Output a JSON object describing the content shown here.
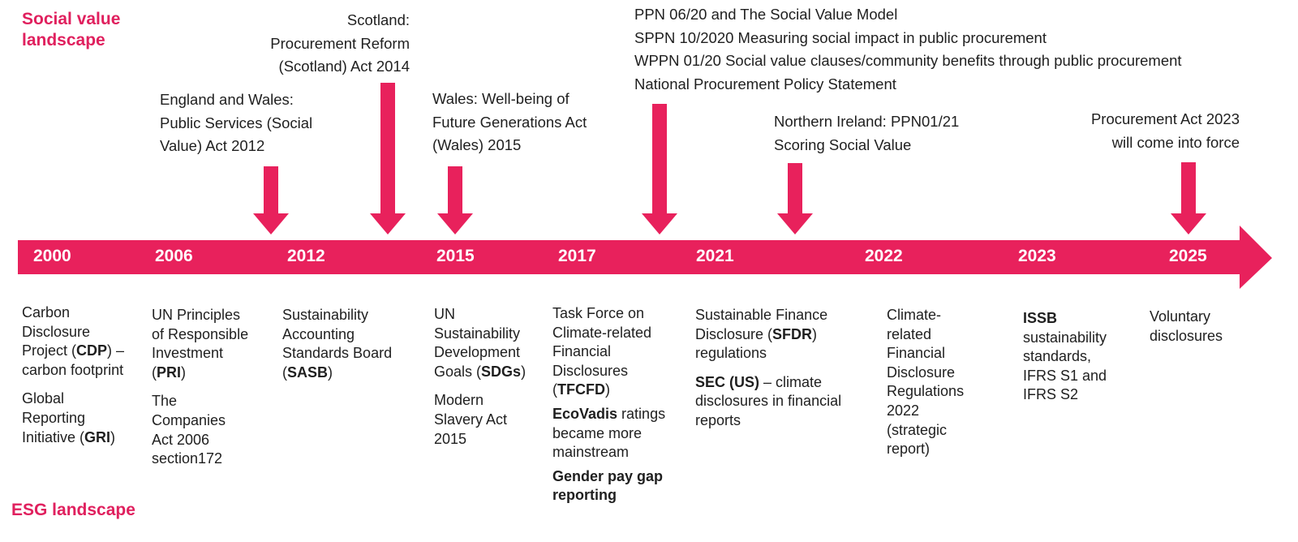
{
  "titles": {
    "social_value": [
      "Social value",
      "landscape"
    ],
    "esg": "ESG landscape"
  },
  "years": [
    "2000",
    "2006",
    "2012",
    "2015",
    "2017",
    "2021",
    "2022",
    "2023",
    "2025"
  ],
  "social_value_events": {
    "england_wales": [
      "England and Wales:",
      "Public Services (Social",
      "Value) Act 2012"
    ],
    "scotland": [
      "Scotland:",
      "Procurement Reform",
      "(Scotland) Act 2014"
    ],
    "wales": [
      "Wales: Well-being of",
      "Future Generations Act",
      "(Wales) 2015"
    ],
    "ppn": [
      "PPN 06/20 and The Social Value Model",
      "SPPN 10/2020 Measuring social impact in public procurement",
      "WPPN 01/20 Social value clauses/community benefits through public procurement",
      "National Procurement Policy Statement"
    ],
    "northern_ireland": [
      "Northern Ireland: PPN01/21",
      "Scoring Social Value"
    ],
    "procurement_act": [
      "Procurement Act 2023",
      "will come into force"
    ]
  },
  "esg_events": {
    "y2000": {
      "cdp": [
        "Carbon",
        "Disclosure",
        "Project (",
        "CDP",
        ") –",
        "carbon footprint"
      ],
      "gri": [
        "Global",
        "Reporting",
        "Initiative (",
        "GRI",
        ")"
      ]
    },
    "y2006": {
      "pri": [
        "UN Principles",
        "of Responsible",
        "Investment",
        "(",
        "PRI",
        ")"
      ],
      "companies_act": [
        "The",
        "Companies",
        "Act 2006",
        "section172"
      ]
    },
    "y2012": {
      "sasb": [
        "Sustainability",
        "Accounting",
        "Standards Board",
        "(",
        "SASB",
        ")"
      ]
    },
    "y2015": {
      "sdg": [
        "UN",
        "Sustainability",
        "Development",
        "Goals (",
        "SDGs",
        ")"
      ],
      "slavery": [
        "Modern",
        "Slavery Act",
        "2015"
      ]
    },
    "y2017": {
      "tcfd": [
        "Task Force on",
        "Climate-related",
        "Financial",
        "Disclosures",
        "(",
        "TFCFD",
        ")"
      ],
      "ecovadis": [
        "EcoVadis",
        " ratings",
        "became more",
        "mainstream"
      ],
      "gender": [
        "Gender pay gap",
        "reporting"
      ]
    },
    "y2021": {
      "sfdr": [
        "Sustainable Finance",
        "Disclosure (",
        "SFDR",
        ")",
        "regulations"
      ],
      "sec": [
        "SEC (US)",
        " – climate",
        "disclosures in financial",
        "reports"
      ]
    },
    "y2022": {
      "climate": [
        "Climate-",
        "related",
        "Financial",
        "Disclosure",
        "Regulations",
        "2022",
        "(strategic",
        "report)"
      ]
    },
    "y2023": {
      "issb": [
        "ISSB",
        "sustainability",
        "standards,",
        "IFRS S1 and",
        "IFRS S2"
      ]
    },
    "y2025": {
      "voluntary": [
        "Voluntary",
        "disclosures"
      ]
    }
  },
  "colors": {
    "accent": "#e8215c",
    "title": "#e0205e",
    "text": "#1f1f1f"
  }
}
